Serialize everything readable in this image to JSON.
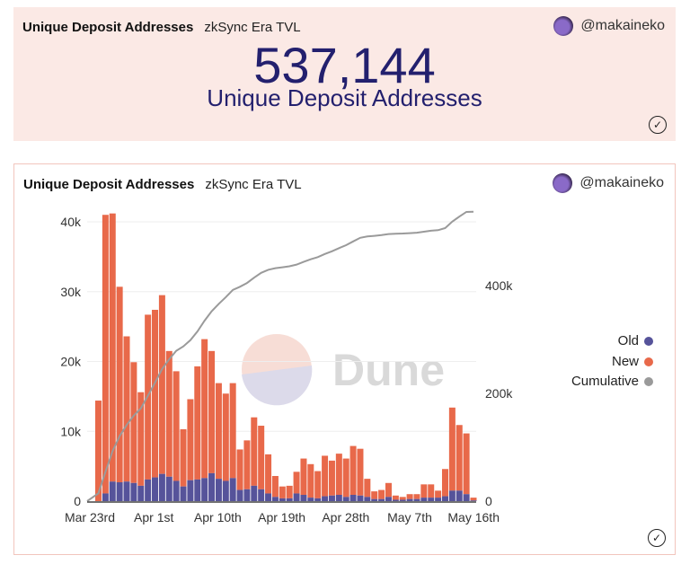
{
  "counter_card": {
    "title": "Unique Deposit Addresses",
    "subtitle": "zkSync Era TVL",
    "user": "@makaineko",
    "value": "537,144",
    "value_label": "Unique Deposit Addresses"
  },
  "chart_card": {
    "title": "Unique Deposit Addresses",
    "subtitle": "zkSync Era TVL",
    "user": "@makaineko",
    "watermark": "Dune"
  },
  "colors": {
    "old": "#56539a",
    "new": "#e8694a",
    "cumulative": "#9a9a9a",
    "title": "#23206e"
  },
  "chart_data": {
    "type": "bar",
    "stacked": true,
    "xlabel": "",
    "ylabel": "",
    "ylim": [
      0,
      42000
    ],
    "y2lim": [
      0,
      560000
    ],
    "y_ticks": [
      "0",
      "10k",
      "20k",
      "30k",
      "40k"
    ],
    "y2_ticks": [
      "0",
      "200k",
      "400k"
    ],
    "x_ticks": [
      "Mar 23rd",
      "Apr 1st",
      "Apr 10th",
      "Apr 19th",
      "Apr 28th",
      "May 7th",
      "May 16th"
    ],
    "legend": [
      "Old",
      "New",
      "Cumulative"
    ],
    "legend_position": "right",
    "totals": [
      14400,
      41000,
      41200,
      30700,
      23600,
      19900,
      15600,
      26700,
      27400,
      29500,
      21500,
      18600,
      10300,
      14600,
      19300,
      23200,
      21500,
      16900,
      15400,
      16900,
      7400,
      8700,
      12000,
      10800,
      6700,
      3600,
      2100,
      2200,
      4200,
      6100,
      5300,
      4300,
      6500,
      5800,
      6800,
      6100,
      7900,
      7500,
      3200,
      1400,
      1600,
      2600,
      800,
      600,
      1000,
      1000,
      2400,
      2400,
      1500,
      4600,
      13400,
      10900,
      9700,
      500
    ],
    "old": [
      0,
      1100,
      2800,
      2700,
      2800,
      2600,
      2200,
      3100,
      3400,
      3900,
      3500,
      2900,
      2100,
      3000,
      3100,
      3300,
      4000,
      3200,
      2900,
      3300,
      1600,
      1700,
      2200,
      1700,
      1100,
      600,
      400,
      400,
      1100,
      900,
      500,
      400,
      700,
      800,
      900,
      600,
      900,
      800,
      600,
      300,
      300,
      600,
      200,
      200,
      300,
      300,
      500,
      500,
      500,
      700,
      1500,
      1500,
      1000,
      100
    ],
    "cumulative_final": 537144
  }
}
